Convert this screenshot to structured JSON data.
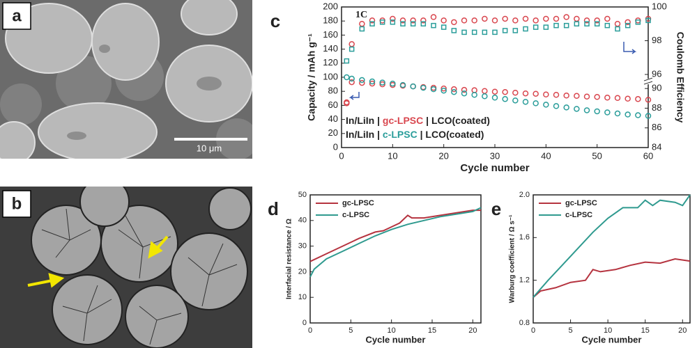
{
  "images": [
    {
      "label": "a",
      "scale_bar": "10 μm"
    },
    {
      "label": "b"
    }
  ],
  "chart_data": [
    {
      "type": "scatter",
      "panel_label": "c",
      "annotation": "1C",
      "xlabel": "Cycle number",
      "ylabel": "Capacity / mAh g⁻¹",
      "y2label": "Coulomb Efficiency",
      "legend_prefix": "In/LiIn | ",
      "legend_suffix": " | LCO(coated)",
      "x": [
        1,
        2,
        4,
        6,
        8,
        10,
        12,
        14,
        16,
        18,
        20,
        22,
        24,
        26,
        28,
        30,
        32,
        34,
        36,
        38,
        40,
        42,
        44,
        46,
        48,
        50,
        52,
        54,
        56,
        58,
        60
      ],
      "xlim": [
        0,
        60
      ],
      "xticks": [
        0,
        10,
        20,
        30,
        40,
        50,
        60
      ],
      "ylim": [
        0,
        200
      ],
      "yticks": [
        0,
        20,
        40,
        60,
        80,
        100,
        120,
        140,
        160,
        180,
        200
      ],
      "y2lim": [
        84,
        100
      ],
      "y2ticks": [
        84,
        86,
        88,
        90,
        96,
        98,
        100
      ],
      "y2break": [
        90,
        96
      ],
      "series": [
        {
          "name": "gc-LPSC",
          "color": "#d9474f",
          "marker": "circle",
          "legend": true,
          "values": [
            63,
            93,
            92,
            91,
            90,
            89,
            88,
            87,
            86,
            85,
            84,
            83,
            82,
            81.5,
            80.5,
            79.5,
            79,
            78,
            77,
            76.5,
            75.5,
            75,
            74,
            73.5,
            72.5,
            72,
            71,
            70.5,
            69.5,
            69,
            68
          ]
        },
        {
          "name": "c-LPSC",
          "color": "#2a9d9a",
          "marker": "circle",
          "legend": true,
          "values": [
            100,
            98,
            96,
            94,
            92.5,
            91,
            89,
            87,
            85,
            83,
            81,
            79,
            77,
            75,
            73,
            71,
            69,
            67,
            65,
            63,
            61,
            59,
            57,
            55,
            53,
            51.5,
            50,
            48.5,
            47,
            46,
            45
          ]
        },
        {
          "name": "gc-LPSC",
          "color": "#d9474f",
          "marker": "circle",
          "axis": "y2",
          "legend": false,
          "values": [
            88.6,
            97.8,
            99.0,
            99.2,
            99.2,
            99.3,
            99.2,
            99.2,
            99.2,
            99.4,
            99.2,
            99.1,
            99.2,
            99.2,
            99.3,
            99.2,
            99.3,
            99.2,
            99.3,
            99.2,
            99.3,
            99.3,
            99.4,
            99.3,
            99.2,
            99.2,
            99.3,
            99.0,
            99.1,
            99.2,
            99.3
          ]
        },
        {
          "name": "c-LPSC",
          "color": "#2a9d9a",
          "marker": "square",
          "axis": "y2",
          "legend": false,
          "values": [
            96.8,
            97.5,
            98.7,
            99.0,
            99.1,
            99.1,
            99.0,
            99.0,
            99.0,
            98.9,
            98.8,
            98.6,
            98.5,
            98.5,
            98.5,
            98.5,
            98.6,
            98.6,
            98.7,
            98.8,
            98.8,
            98.9,
            98.9,
            99.0,
            99.0,
            99.0,
            98.9,
            98.7,
            98.9,
            99.1,
            99.2
          ]
        }
      ]
    },
    {
      "type": "line",
      "panel_label": "d",
      "xlabel": "Cycle number",
      "ylabel": "Interfacial resistance / Ω",
      "xlim": [
        0,
        21
      ],
      "xticks": [
        0,
        5,
        10,
        15,
        20
      ],
      "ylim": [
        0,
        50
      ],
      "yticks": [
        0,
        10,
        20,
        30,
        40,
        50
      ],
      "series": [
        {
          "name": "gc-LPSC",
          "color": "#b5333f",
          "legend": true,
          "x": [
            0,
            2,
            4,
            6,
            8,
            9,
            10,
            11,
            12,
            12.5,
            14,
            16,
            18,
            20,
            21
          ],
          "values": [
            24,
            27,
            30,
            33,
            35.5,
            36,
            37.5,
            39,
            42,
            41,
            41,
            42,
            43,
            44,
            44
          ]
        },
        {
          "name": "c-LPSC",
          "color": "#2f9a8f",
          "legend": true,
          "x": [
            0,
            0.5,
            2,
            4,
            6,
            8,
            10,
            12,
            14,
            16,
            18,
            20,
            21
          ],
          "values": [
            18,
            21,
            25,
            28,
            31,
            34,
            36.5,
            38.5,
            40,
            41.5,
            42.5,
            43.5,
            45
          ]
        }
      ]
    },
    {
      "type": "line",
      "panel_label": "e",
      "xlabel": "Cycle number",
      "ylabel": "Warburg coefficient / Ω s⁻¹",
      "xlim": [
        0,
        21
      ],
      "xticks": [
        0,
        5,
        10,
        15,
        20
      ],
      "ylim": [
        0.8,
        2.0
      ],
      "yticks": [
        0.8,
        1.2,
        1.6,
        {
          "value": 2,
          "label": "2.0"
        }
      ],
      "series": [
        {
          "name": "gc-LPSC",
          "color": "#b5333f",
          "legend": true,
          "x": [
            0,
            1,
            3,
            5,
            7,
            8,
            9,
            11,
            13,
            15,
            17,
            19,
            21
          ],
          "values": [
            1.04,
            1.1,
            1.13,
            1.18,
            1.2,
            1.3,
            1.28,
            1.3,
            1.34,
            1.37,
            1.36,
            1.4,
            1.38
          ]
        },
        {
          "name": "c-LPSC",
          "color": "#2f9a8f",
          "legend": true,
          "x": [
            0,
            2,
            4,
            6,
            8,
            10,
            12,
            14,
            15,
            16,
            17,
            19,
            20,
            21
          ],
          "values": [
            1.04,
            1.2,
            1.35,
            1.5,
            1.65,
            1.78,
            1.88,
            1.88,
            1.95,
            1.9,
            1.95,
            1.93,
            1.9,
            2.0
          ]
        }
      ]
    }
  ]
}
